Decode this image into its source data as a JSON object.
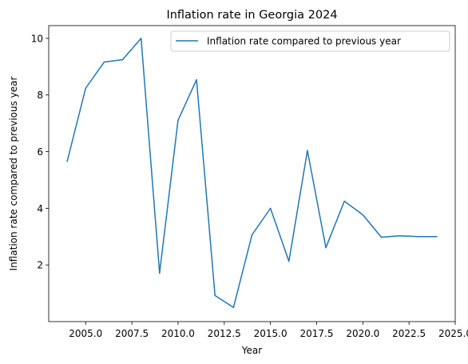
{
  "chart_data": {
    "type": "line",
    "title": "Inflation rate in Georgia 2024",
    "xlabel": "Year",
    "ylabel": "Inflation rate compared to previous year",
    "xlim": [
      2003.0,
      2025.0
    ],
    "ylim": [
      0.0,
      10.45
    ],
    "x_ticks": [
      2005.0,
      2007.5,
      2010.0,
      2012.5,
      2015.0,
      2017.5,
      2020.0,
      2022.5,
      2025.0
    ],
    "x_tick_labels": [
      "2005.0",
      "2007.5",
      "2010.0",
      "2012.5",
      "2015.0",
      "2017.5",
      "2020.0",
      "2022.5",
      "2025.0"
    ],
    "y_ticks": [
      2,
      4,
      6,
      8,
      10
    ],
    "y_tick_labels": [
      "2",
      "4",
      "6",
      "8",
      "10"
    ],
    "grid": false,
    "legend_position": "top-right",
    "series": [
      {
        "name": "Inflation rate compared to previous year",
        "color": "#1f77b4",
        "x": [
          2004,
          2005,
          2006,
          2007,
          2008,
          2009,
          2010,
          2011,
          2012,
          2013,
          2014,
          2015,
          2016,
          2017,
          2018,
          2019,
          2020,
          2021,
          2022,
          2023,
          2024
        ],
        "y": [
          5.66,
          8.24,
          9.16,
          9.25,
          10.0,
          1.71,
          7.11,
          8.54,
          0.92,
          0.5,
          3.06,
          4.0,
          2.13,
          6.04,
          2.61,
          4.25,
          3.77,
          2.98,
          3.03,
          3.0,
          3.0
        ]
      }
    ]
  }
}
